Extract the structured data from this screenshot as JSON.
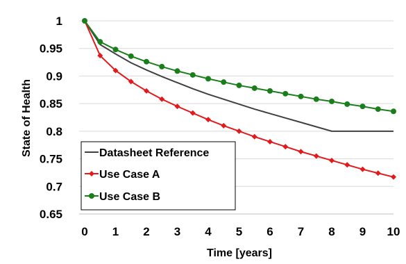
{
  "chart_data": {
    "type": "line",
    "title": "",
    "xlabel": "Time [years]",
    "ylabel": "State of Health",
    "xlim": [
      0,
      10
    ],
    "ylim": [
      0.65,
      1
    ],
    "x_ticks": [
      "0",
      "1",
      "2",
      "3",
      "4",
      "5",
      "6",
      "7",
      "8",
      "9",
      "10"
    ],
    "y_ticks": [
      "0.65",
      "0.7",
      "0.75",
      "0.8",
      "0.85",
      "0.9",
      "0.95",
      "1"
    ],
    "grid": "horizontal",
    "legend_position": "bottom-left",
    "series": [
      {
        "name": "Datasheet Reference",
        "color": "#404040",
        "marker": "none",
        "x": [
          0,
          0.5,
          1,
          1.5,
          2,
          2.5,
          3,
          3.5,
          4,
          4.5,
          5,
          5.5,
          6,
          6.5,
          7,
          7.5,
          8,
          8.5,
          9,
          9.5,
          10
        ],
        "y": [
          1.0,
          0.957,
          0.94,
          0.924,
          0.911,
          0.899,
          0.888,
          0.877,
          0.867,
          0.858,
          0.849,
          0.84,
          0.832,
          0.824,
          0.816,
          0.808,
          0.8,
          0.8,
          0.8,
          0.8,
          0.8
        ]
      },
      {
        "name": "Use Case A",
        "color": "#e31a1c",
        "marker": "diamond",
        "x": [
          0,
          0.5,
          1,
          1.5,
          2,
          2.5,
          3,
          3.5,
          4,
          4.5,
          5,
          5.5,
          6,
          6.5,
          7,
          7.5,
          8,
          8.5,
          9,
          9.5,
          10
        ],
        "y": [
          1.0,
          0.937,
          0.91,
          0.89,
          0.873,
          0.858,
          0.845,
          0.833,
          0.821,
          0.81,
          0.8,
          0.79,
          0.781,
          0.772,
          0.763,
          0.755,
          0.747,
          0.739,
          0.731,
          0.724,
          0.717
        ]
      },
      {
        "name": "Use Case B",
        "color": "#1a7f1a",
        "marker": "circle",
        "x": [
          0,
          0.5,
          1,
          1.5,
          2,
          2.5,
          3,
          3.5,
          4,
          4.5,
          5,
          5.5,
          6,
          6.5,
          7,
          7.5,
          8,
          8.5,
          9,
          9.5,
          10
        ],
        "y": [
          1.0,
          0.962,
          0.948,
          0.936,
          0.926,
          0.917,
          0.909,
          0.902,
          0.895,
          0.889,
          0.883,
          0.878,
          0.873,
          0.868,
          0.863,
          0.858,
          0.854,
          0.849,
          0.845,
          0.84,
          0.836
        ]
      }
    ]
  }
}
